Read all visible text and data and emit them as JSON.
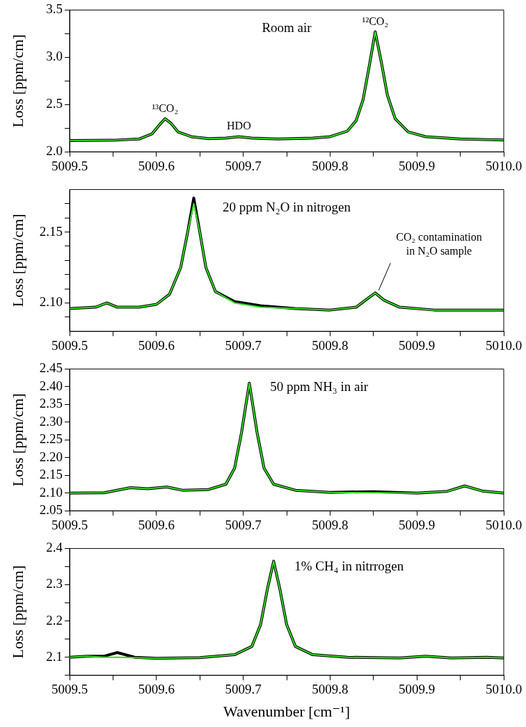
{
  "chart_data": [
    {
      "type": "line",
      "ylabel": "Loss [ppm/cm]",
      "annotations": [
        "Room air",
        {
          "text": "¹³CO₂",
          "x": 5009.61,
          "y": 2.35
        },
        {
          "text": "HDO",
          "x": 5009.695,
          "y": 2.16
        },
        {
          "text": "¹²CO₂",
          "x": 5009.852,
          "y": 3.27
        }
      ],
      "x": [
        5009.5,
        5009.55,
        5009.58,
        5009.595,
        5009.603,
        5009.61,
        5009.617,
        5009.625,
        5009.64,
        5009.66,
        5009.68,
        5009.695,
        5009.71,
        5009.74,
        5009.78,
        5009.8,
        5009.82,
        5009.83,
        5009.838,
        5009.845,
        5009.852,
        5009.859,
        5009.866,
        5009.875,
        5009.89,
        5009.91,
        5009.95,
        5010.0
      ],
      "series": [
        {
          "color": "#000000",
          "values": [
            2.12,
            2.122,
            2.135,
            2.19,
            2.28,
            2.35,
            2.3,
            2.21,
            2.16,
            2.14,
            2.145,
            2.16,
            2.145,
            2.135,
            2.145,
            2.16,
            2.22,
            2.33,
            2.55,
            2.9,
            3.27,
            2.95,
            2.6,
            2.35,
            2.21,
            2.16,
            2.135,
            2.125
          ]
        },
        {
          "color": "#33dd22",
          "values": [
            2.12,
            2.122,
            2.135,
            2.19,
            2.28,
            2.35,
            2.3,
            2.21,
            2.16,
            2.14,
            2.145,
            2.16,
            2.145,
            2.135,
            2.145,
            2.16,
            2.22,
            2.33,
            2.55,
            2.9,
            3.27,
            2.95,
            2.6,
            2.35,
            2.21,
            2.16,
            2.135,
            2.125
          ]
        }
      ],
      "xlim": [
        5009.5,
        5010.0
      ],
      "ylim": [
        2.0,
        3.5
      ],
      "xticks": [
        5009.5,
        {
          "value": 5009.55,
          "label": null
        },
        5009.6,
        {
          "value": 5009.65,
          "label": null
        },
        5009.7,
        {
          "value": 5009.75,
          "label": null
        },
        5009.8,
        {
          "value": 5009.85,
          "label": null
        },
        5009.9,
        {
          "value": 5009.95,
          "label": null
        },
        {
          "value": 5010,
          "label": "5010.0"
        }
      ],
      "yticks": [
        {
          "value": 2,
          "label": "2.0"
        },
        {
          "value": 2.25,
          "label": null
        },
        2.5,
        {
          "value": 2.75,
          "label": null
        },
        {
          "value": 3,
          "label": "3.0"
        },
        {
          "value": 3.25,
          "label": null
        },
        3.5
      ],
      "line_style": "solid"
    },
    {
      "type": "line",
      "ylabel": "Loss [ppm/cm]",
      "annotations": [
        "20 ppm N₂O in nitrogen",
        {
          "text": "CO₂ contamination\nin N₂O sample",
          "x": 5009.852,
          "y": 2.107
        }
      ],
      "x": [
        5009.5,
        5009.53,
        5009.543,
        5009.555,
        5009.58,
        5009.6,
        5009.615,
        5009.628,
        5009.636,
        5009.643,
        5009.65,
        5009.657,
        5009.668,
        5009.69,
        5009.72,
        5009.76,
        5009.8,
        5009.83,
        5009.843,
        5009.852,
        5009.862,
        5009.88,
        5009.92,
        5010.0
      ],
      "series": [
        {
          "color": "#000000",
          "values": [
            2.096,
            2.097,
            2.1,
            2.097,
            2.097,
            2.099,
            2.106,
            2.125,
            2.15,
            2.174,
            2.15,
            2.125,
            2.108,
            2.101,
            2.098,
            2.096,
            2.095,
            2.097,
            2.103,
            2.107,
            2.102,
            2.097,
            2.095,
            2.095
          ]
        },
        {
          "color": "#33dd22",
          "values": [
            2.096,
            2.097,
            2.1,
            2.097,
            2.097,
            2.099,
            2.106,
            2.125,
            2.15,
            2.17,
            2.15,
            2.125,
            2.108,
            2.1,
            2.097,
            2.096,
            2.095,
            2.097,
            2.103,
            2.107,
            2.102,
            2.097,
            2.095,
            2.095
          ]
        }
      ],
      "xlim": [
        5009.5,
        5010.0
      ],
      "ylim": [
        2.08,
        2.18
      ],
      "xticks": [
        5009.5,
        {
          "value": 5009.55,
          "label": null
        },
        5009.6,
        {
          "value": 5009.65,
          "label": null
        },
        5009.7,
        {
          "value": 5009.75,
          "label": null
        },
        5009.8,
        {
          "value": 5009.85,
          "label": null
        },
        5009.9,
        {
          "value": 5009.95,
          "label": null
        },
        {
          "value": 5010,
          "label": "5010.0"
        }
      ],
      "yticks": [
        {
          "value": 2.09,
          "label": null
        },
        {
          "value": 2.1,
          "label": "2.10"
        },
        {
          "value": 2.11,
          "label": null
        },
        {
          "value": 2.12,
          "label": null
        },
        {
          "value": 2.13,
          "label": null
        },
        {
          "value": 2.14,
          "label": null
        },
        2.15,
        {
          "value": 2.16,
          "label": null
        },
        {
          "value": 2.17,
          "label": null
        }
      ],
      "line_style": "solid"
    },
    {
      "type": "line",
      "ylabel": "Loss [ppm/cm]",
      "annotations": [
        "50 ppm NH₃ in air"
      ],
      "x": [
        5009.5,
        5009.54,
        5009.57,
        5009.59,
        5009.612,
        5009.63,
        5009.66,
        5009.68,
        5009.69,
        5009.698,
        5009.707,
        5009.716,
        5009.724,
        5009.735,
        5009.76,
        5009.8,
        5009.85,
        5009.9,
        5009.935,
        5009.955,
        5009.975,
        5010.0
      ],
      "series": [
        {
          "color": "#000000",
          "values": [
            2.1,
            2.101,
            2.115,
            2.112,
            2.117,
            2.108,
            2.11,
            2.125,
            2.17,
            2.27,
            2.41,
            2.27,
            2.17,
            2.125,
            2.108,
            2.102,
            2.104,
            2.1,
            2.105,
            2.12,
            2.106,
            2.1
          ]
        },
        {
          "color": "#33dd22",
          "values": [
            2.1,
            2.101,
            2.115,
            2.112,
            2.117,
            2.108,
            2.11,
            2.125,
            2.17,
            2.27,
            2.41,
            2.27,
            2.17,
            2.125,
            2.108,
            2.102,
            2.101,
            2.1,
            2.105,
            2.12,
            2.106,
            2.1
          ]
        }
      ],
      "xlim": [
        5009.5,
        5010.0
      ],
      "ylim": [
        2.05,
        2.45
      ],
      "xticks": [
        5009.5,
        {
          "value": 5009.55,
          "label": null
        },
        5009.6,
        {
          "value": 5009.65,
          "label": null
        },
        5009.7,
        {
          "value": 5009.75,
          "label": null
        },
        5009.8,
        {
          "value": 5009.85,
          "label": null
        },
        5009.9,
        {
          "value": 5009.95,
          "label": null
        },
        {
          "value": 5010,
          "label": "5010.0"
        }
      ],
      "yticks": [
        2.05,
        {
          "value": 2.1,
          "label": "2.10"
        },
        2.15,
        {
          "value": 2.2,
          "label": "2.20"
        },
        2.25,
        {
          "value": 2.3,
          "label": "2.30"
        },
        2.35,
        {
          "value": 2.4,
          "label": "2.40"
        },
        2.45
      ],
      "line_style": "solid"
    },
    {
      "type": "line",
      "ylabel": "Loss [ppm/cm]",
      "xlabel": "Wavenumber [cm⁻¹]",
      "annotations": [
        "1% CH₄ in nitrrogen"
      ],
      "x": [
        5009.5,
        5009.52,
        5009.54,
        5009.555,
        5009.575,
        5009.6,
        5009.65,
        5009.69,
        5009.71,
        5009.72,
        5009.728,
        5009.735,
        5009.742,
        5009.75,
        5009.76,
        5009.78,
        5009.82,
        5009.88,
        5009.91,
        5009.94,
        5009.98,
        5010.0
      ],
      "series": [
        {
          "color": "#000000",
          "values": [
            2.1,
            2.103,
            2.103,
            2.113,
            2.1,
            2.097,
            2.099,
            2.107,
            2.13,
            2.19,
            2.29,
            2.365,
            2.29,
            2.19,
            2.13,
            2.107,
            2.1,
            2.098,
            2.103,
            2.098,
            2.1,
            2.098
          ]
        },
        {
          "color": "#33dd22",
          "values": [
            2.1,
            2.103,
            2.1,
            2.1,
            2.099,
            2.097,
            2.099,
            2.107,
            2.13,
            2.19,
            2.29,
            2.365,
            2.29,
            2.19,
            2.13,
            2.107,
            2.1,
            2.098,
            2.103,
            2.098,
            2.1,
            2.098
          ]
        }
      ],
      "xlim": [
        5009.5,
        5010.0
      ],
      "ylim": [
        2.05,
        2.4
      ],
      "xticks": [
        5009.5,
        {
          "value": 5009.55,
          "label": null
        },
        5009.6,
        {
          "value": 5009.65,
          "label": null
        },
        5009.7,
        {
          "value": 5009.75,
          "label": null
        },
        5009.8,
        {
          "value": 5009.85,
          "label": null
        },
        5009.9,
        {
          "value": 5009.95,
          "label": null
        },
        {
          "value": 5010,
          "label": "5010.0"
        }
      ],
      "yticks": [
        {
          "value": 2.05,
          "label": null
        },
        2.1,
        {
          "value": 2.15,
          "label": null
        },
        2.2,
        {
          "value": 2.25,
          "label": null
        },
        2.3,
        {
          "value": 2.35,
          "label": null
        },
        2.4
      ],
      "line_style": "solid"
    }
  ]
}
